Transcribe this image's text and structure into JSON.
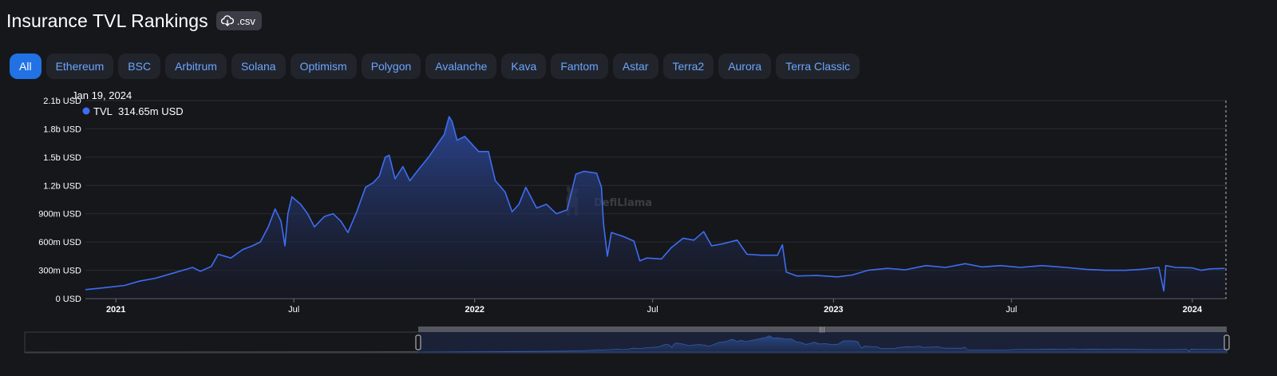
{
  "header": {
    "title": "Insurance TVL Rankings",
    "csv_label": ".csv"
  },
  "tabs": [
    {
      "label": "All",
      "active": true
    },
    {
      "label": "Ethereum"
    },
    {
      "label": "BSC"
    },
    {
      "label": "Arbitrum"
    },
    {
      "label": "Solana"
    },
    {
      "label": "Optimism"
    },
    {
      "label": "Polygon"
    },
    {
      "label": "Avalanche"
    },
    {
      "label": "Kava"
    },
    {
      "label": "Fantom"
    },
    {
      "label": "Astar"
    },
    {
      "label": "Terra2"
    },
    {
      "label": "Aurora"
    },
    {
      "label": "Terra Classic"
    }
  ],
  "tooltip": {
    "date": "Jan 19, 2024",
    "series": "TVL",
    "value": "314.65m USD"
  },
  "watermark": "DefiLlama",
  "colors": {
    "line": "#3e6df2",
    "accent": "#2172e5",
    "tab_text": "#6aa6ff"
  },
  "chart_data": {
    "type": "area",
    "title": "",
    "xlabel": "",
    "ylabel": "",
    "y_unit": "USD",
    "ylim": [
      0,
      2100
    ],
    "y_ticks": [
      {
        "value": 0,
        "label": "0 USD"
      },
      {
        "value": 300,
        "label": "300m USD"
      },
      {
        "value": 600,
        "label": "600m USD"
      },
      {
        "value": 900,
        "label": "900m USD"
      },
      {
        "value": 1200,
        "label": "1.2b USD"
      },
      {
        "value": 1500,
        "label": "1.5b USD"
      },
      {
        "value": 1800,
        "label": "1.8b USD"
      },
      {
        "value": 2100,
        "label": "2.1b USD"
      }
    ],
    "xlim": [
      "2020-12-01",
      "2024-02-05"
    ],
    "x_ticks": [
      {
        "date": "2021-01-01",
        "label": "2021"
      },
      {
        "date": "2021-07-01",
        "label": "Jul"
      },
      {
        "date": "2022-01-01",
        "label": "2022"
      },
      {
        "date": "2022-07-01",
        "label": "Jul"
      },
      {
        "date": "2023-01-01",
        "label": "2023"
      },
      {
        "date": "2023-07-01",
        "label": "Jul"
      },
      {
        "date": "2024-01-01",
        "label": "2024"
      }
    ],
    "grid": true,
    "series": [
      {
        "name": "TVL",
        "points": [
          [
            "2020-12-01",
            95
          ],
          [
            "2020-12-20",
            115
          ],
          [
            "2021-01-10",
            140
          ],
          [
            "2021-01-25",
            185
          ],
          [
            "2021-02-10",
            215
          ],
          [
            "2021-02-25",
            260
          ],
          [
            "2021-03-10",
            300
          ],
          [
            "2021-03-20",
            330
          ],
          [
            "2021-03-28",
            290
          ],
          [
            "2021-04-08",
            340
          ],
          [
            "2021-04-15",
            470
          ],
          [
            "2021-04-28",
            430
          ],
          [
            "2021-05-10",
            520
          ],
          [
            "2021-05-20",
            560
          ],
          [
            "2021-05-28",
            600
          ],
          [
            "2021-06-05",
            760
          ],
          [
            "2021-06-12",
            950
          ],
          [
            "2021-06-18",
            820
          ],
          [
            "2021-06-22",
            560
          ],
          [
            "2021-06-25",
            900
          ],
          [
            "2021-06-29",
            1080
          ],
          [
            "2021-07-08",
            1000
          ],
          [
            "2021-07-15",
            900
          ],
          [
            "2021-07-22",
            760
          ],
          [
            "2021-08-01",
            870
          ],
          [
            "2021-08-10",
            900
          ],
          [
            "2021-08-18",
            820
          ],
          [
            "2021-08-25",
            700
          ],
          [
            "2021-09-03",
            920
          ],
          [
            "2021-09-12",
            1180
          ],
          [
            "2021-09-20",
            1230
          ],
          [
            "2021-09-26",
            1300
          ],
          [
            "2021-10-02",
            1500
          ],
          [
            "2021-10-06",
            1520
          ],
          [
            "2021-10-12",
            1270
          ],
          [
            "2021-10-20",
            1400
          ],
          [
            "2021-10-27",
            1250
          ],
          [
            "2021-11-05",
            1370
          ],
          [
            "2021-11-15",
            1500
          ],
          [
            "2021-11-25",
            1650
          ],
          [
            "2021-12-01",
            1740
          ],
          [
            "2021-12-06",
            1930
          ],
          [
            "2021-12-09",
            1880
          ],
          [
            "2021-12-14",
            1680
          ],
          [
            "2021-12-22",
            1720
          ],
          [
            "2022-01-05",
            1560
          ],
          [
            "2022-01-15",
            1560
          ],
          [
            "2022-01-22",
            1250
          ],
          [
            "2022-02-01",
            1130
          ],
          [
            "2022-02-08",
            920
          ],
          [
            "2022-02-15",
            1000
          ],
          [
            "2022-02-22",
            1180
          ],
          [
            "2022-03-05",
            960
          ],
          [
            "2022-03-15",
            1000
          ],
          [
            "2022-03-25",
            900
          ],
          [
            "2022-04-05",
            940
          ],
          [
            "2022-04-14",
            1320
          ],
          [
            "2022-04-22",
            1350
          ],
          [
            "2022-05-05",
            1330
          ],
          [
            "2022-05-10",
            1180
          ],
          [
            "2022-05-12",
            800
          ],
          [
            "2022-05-16",
            450
          ],
          [
            "2022-05-20",
            700
          ],
          [
            "2022-06-01",
            660
          ],
          [
            "2022-06-12",
            610
          ],
          [
            "2022-06-18",
            400
          ],
          [
            "2022-06-25",
            430
          ],
          [
            "2022-07-10",
            420
          ],
          [
            "2022-07-20",
            540
          ],
          [
            "2022-08-01",
            640
          ],
          [
            "2022-08-12",
            620
          ],
          [
            "2022-08-22",
            710
          ],
          [
            "2022-08-30",
            560
          ],
          [
            "2022-09-10",
            580
          ],
          [
            "2022-09-25",
            620
          ],
          [
            "2022-10-05",
            470
          ],
          [
            "2022-10-20",
            460
          ],
          [
            "2022-11-05",
            460
          ],
          [
            "2022-11-10",
            570
          ],
          [
            "2022-11-14",
            280
          ],
          [
            "2022-11-25",
            240
          ],
          [
            "2022-12-15",
            245
          ],
          [
            "2023-01-05",
            230
          ],
          [
            "2023-01-20",
            250
          ],
          [
            "2023-02-05",
            300
          ],
          [
            "2023-02-25",
            320
          ],
          [
            "2023-03-15",
            305
          ],
          [
            "2023-04-05",
            350
          ],
          [
            "2023-04-25",
            330
          ],
          [
            "2023-05-15",
            370
          ],
          [
            "2023-06-01",
            335
          ],
          [
            "2023-06-20",
            350
          ],
          [
            "2023-07-10",
            330
          ],
          [
            "2023-08-01",
            350
          ],
          [
            "2023-08-25",
            330
          ],
          [
            "2023-09-15",
            310
          ],
          [
            "2023-10-05",
            300
          ],
          [
            "2023-10-25",
            300
          ],
          [
            "2023-11-10",
            310
          ],
          [
            "2023-11-28",
            330
          ],
          [
            "2023-12-03",
            80
          ],
          [
            "2023-12-05",
            350
          ],
          [
            "2023-12-15",
            330
          ],
          [
            "2024-01-01",
            325
          ],
          [
            "2024-01-10",
            300
          ],
          [
            "2024-01-19",
            314.65
          ],
          [
            "2024-02-03",
            320
          ]
        ]
      }
    ]
  }
}
